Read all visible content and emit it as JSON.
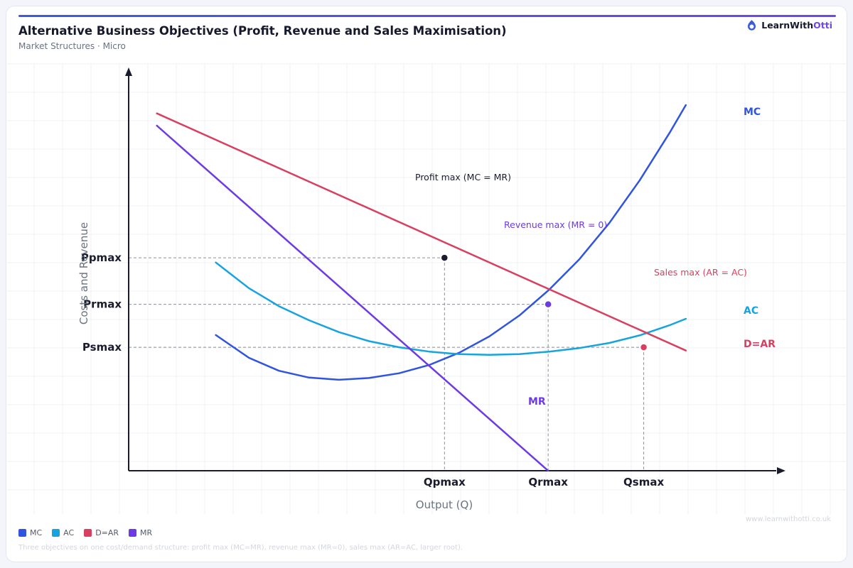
{
  "header": {
    "title": "Alternative Business Objectives (Profit, Revenue and Sales Maximisation)",
    "subtitle": "Market Structures · Micro"
  },
  "brand": {
    "name_main": "LearnWith",
    "name_accent": "Otti",
    "website": "www.learnwithotti.co.uk"
  },
  "footnote": "Three objectives on one cost/demand structure: profit max (MC=MR), revenue max (MR=0), sales max (AR=AC, larger root).",
  "colors": {
    "mc": "#2f55e0",
    "ac": "#16a3df",
    "ar": "#d9405f",
    "mr": "#6d3ae6",
    "axis": "#1a1c2e",
    "grid": "#eef1f6",
    "guide": "#8b8f99",
    "accent_bar": "#3b5bdb"
  },
  "legend": [
    {
      "label": "MC",
      "color": "#2f55e0"
    },
    {
      "label": "AC",
      "color": "#16a3df"
    },
    {
      "label": "D=AR",
      "color": "#d9405f"
    },
    {
      "label": "MR",
      "color": "#6d3ae6"
    }
  ],
  "chart_data": {
    "type": "line",
    "xlabel": "Output (Q)",
    "ylabel": "Costs and Revenue",
    "xlim": [
      0,
      100
    ],
    "ylim": [
      0,
      100
    ],
    "grid": true,
    "axis_ticks": {
      "x": [
        {
          "label": "Qpmax",
          "value": 52.55
        },
        {
          "label": "Qrmax",
          "value": 69.8
        },
        {
          "label": "Qsmax",
          "value": 85.7
        }
      ],
      "y": [
        {
          "label": "Ppmax",
          "value": 59.0
        },
        {
          "label": "Prmax",
          "value": 46.1
        },
        {
          "label": "Psmax",
          "value": 34.2
        }
      ]
    },
    "series": [
      {
        "name": "MC",
        "color": "#2f55e0",
        "x": [
          14.5,
          20,
          25,
          30,
          35,
          40,
          45,
          50,
          55,
          60,
          65,
          70,
          75,
          80,
          85,
          90,
          92.7
        ],
        "y": [
          37.6,
          31.3,
          27.7,
          25.8,
          25.2,
          25.7,
          27.0,
          29.3,
          32.7,
          37.2,
          43.0,
          50.2,
          58.6,
          68.7,
          80.4,
          93.6,
          101.3
        ]
      },
      {
        "name": "AC",
        "color": "#16a3df",
        "x": [
          14.5,
          20,
          25,
          30,
          35,
          40,
          45,
          50,
          55,
          60,
          65,
          70,
          75,
          80,
          85,
          90,
          92.7
        ],
        "y": [
          57.7,
          50.6,
          45.6,
          41.7,
          38.4,
          35.9,
          34.2,
          33.0,
          32.3,
          32.1,
          32.3,
          33.0,
          34.0,
          35.4,
          37.5,
          40.3,
          42.1
        ]
      },
      {
        "name": "D=AR",
        "color": "#d9405f",
        "x": [
          4.7,
          92.7
        ],
        "y": [
          99.0,
          33.3
        ]
      },
      {
        "name": "MR",
        "color": "#6d3ae6",
        "x": [
          4.7,
          69.8
        ],
        "y": [
          95.6,
          0
        ]
      }
    ],
    "points": [
      {
        "x": 52.55,
        "y": 59.0,
        "color": "#1a1c2e"
      },
      {
        "x": 69.8,
        "y": 46.1,
        "color": "#6d3ae6"
      },
      {
        "x": 85.7,
        "y": 34.2,
        "color": "#d9405f"
      }
    ],
    "series_labels": [
      {
        "text": "MC",
        "color": "#2f55e0"
      },
      {
        "text": "AC",
        "color": "#16a3df"
      },
      {
        "text": "D=AR",
        "color": "#d9405f"
      },
      {
        "text": "MR",
        "color": "#6d3ae6"
      }
    ],
    "annotations": [
      {
        "text": "Profit max (MC = MR)",
        "color": "#1a1c2e"
      },
      {
        "text": "Revenue max (MR = 0)",
        "color": "#6d3ae6"
      },
      {
        "text": "Sales max (AR = AC)",
        "color": "#d9405f"
      }
    ]
  }
}
